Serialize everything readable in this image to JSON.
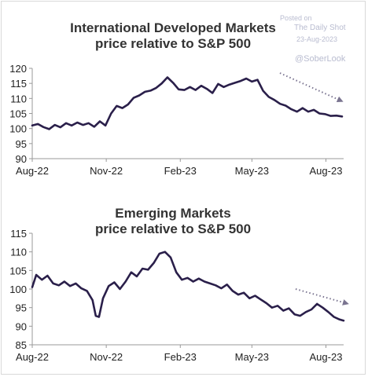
{
  "watermark": {
    "posted": "Posted on",
    "source": "The Daily Shot",
    "date": "23-Aug-2023",
    "handle": "@SoberLook"
  },
  "colors": {
    "line": "#2a1f4a",
    "arrow": "#7a7490",
    "axis": "#9a9a9a",
    "text": "#222222"
  },
  "chart_data": [
    {
      "type": "line",
      "title_line1": "International Developed Markets",
      "title_line2": "price relative to S&P 500",
      "ylim": [
        90,
        120
      ],
      "yticks": [
        90,
        95,
        100,
        105,
        110,
        115,
        120
      ],
      "xlim": [
        "2022-08-01",
        "2023-08-23"
      ],
      "xticks": [
        {
          "label": "Aug-22",
          "date": "2022-08-01"
        },
        {
          "label": "Nov-22",
          "date": "2022-11-01"
        },
        {
          "label": "Feb-23",
          "date": "2023-02-01"
        },
        {
          "label": "May-23",
          "date": "2023-05-01"
        },
        {
          "label": "Aug-23",
          "date": "2023-08-01"
        }
      ],
      "series": [
        {
          "points": [
            [
              "2022-08-01",
              101.0
            ],
            [
              "2022-08-08",
              101.5
            ],
            [
              "2022-08-15",
              100.5
            ],
            [
              "2022-08-22",
              99.8
            ],
            [
              "2022-08-29",
              101.2
            ],
            [
              "2022-09-05",
              100.4
            ],
            [
              "2022-09-12",
              101.8
            ],
            [
              "2022-09-19",
              101.0
            ],
            [
              "2022-09-26",
              102.0
            ],
            [
              "2022-10-03",
              101.2
            ],
            [
              "2022-10-10",
              101.8
            ],
            [
              "2022-10-17",
              100.6
            ],
            [
              "2022-10-24",
              102.4
            ],
            [
              "2022-10-31",
              101.0
            ],
            [
              "2022-11-07",
              105.0
            ],
            [
              "2022-11-14",
              107.5
            ],
            [
              "2022-11-21",
              106.8
            ],
            [
              "2022-11-28",
              108.0
            ],
            [
              "2022-12-05",
              110.2
            ],
            [
              "2022-12-12",
              111.0
            ],
            [
              "2022-12-19",
              112.2
            ],
            [
              "2022-12-26",
              112.6
            ],
            [
              "2023-01-02",
              113.5
            ],
            [
              "2023-01-09",
              115.0
            ],
            [
              "2023-01-16",
              117.0
            ],
            [
              "2023-01-23",
              115.2
            ],
            [
              "2023-01-30",
              113.0
            ],
            [
              "2023-02-06",
              112.8
            ],
            [
              "2023-02-13",
              113.8
            ],
            [
              "2023-02-20",
              112.8
            ],
            [
              "2023-02-27",
              114.2
            ],
            [
              "2023-03-06",
              113.2
            ],
            [
              "2023-03-13",
              111.8
            ],
            [
              "2023-03-20",
              114.8
            ],
            [
              "2023-03-27",
              113.8
            ],
            [
              "2023-04-03",
              114.6
            ],
            [
              "2023-04-10",
              115.2
            ],
            [
              "2023-04-17",
              115.8
            ],
            [
              "2023-04-24",
              116.6
            ],
            [
              "2023-05-01",
              115.6
            ],
            [
              "2023-05-08",
              116.2
            ],
            [
              "2023-05-15",
              112.5
            ],
            [
              "2023-05-22",
              110.5
            ],
            [
              "2023-05-29",
              109.5
            ],
            [
              "2023-06-05",
              108.2
            ],
            [
              "2023-06-12",
              107.6
            ],
            [
              "2023-06-19",
              106.4
            ],
            [
              "2023-06-26",
              105.6
            ],
            [
              "2023-07-03",
              106.8
            ],
            [
              "2023-07-10",
              105.6
            ],
            [
              "2023-07-17",
              106.2
            ],
            [
              "2023-07-24",
              105.0
            ],
            [
              "2023-07-31",
              104.8
            ],
            [
              "2023-08-07",
              104.2
            ],
            [
              "2023-08-14",
              104.3
            ],
            [
              "2023-08-21",
              104.0
            ]
          ]
        }
      ]
    },
    {
      "type": "line",
      "title_line1": "Emerging Markets",
      "title_line2": "price relative to S&P 500",
      "ylim": [
        85,
        115
      ],
      "yticks": [
        85,
        90,
        95,
        100,
        105,
        110,
        115
      ],
      "xlim": [
        "2022-08-01",
        "2023-08-23"
      ],
      "xticks": [
        {
          "label": "Aug-22",
          "date": "2022-08-01"
        },
        {
          "label": "Nov-22",
          "date": "2022-11-01"
        },
        {
          "label": "Feb-23",
          "date": "2023-02-01"
        },
        {
          "label": "May-23",
          "date": "2023-05-01"
        },
        {
          "label": "Aug-23",
          "date": "2023-08-01"
        }
      ],
      "series": [
        {
          "points": [
            [
              "2022-08-01",
              100.5
            ],
            [
              "2022-08-06",
              103.8
            ],
            [
              "2022-08-13",
              102.5
            ],
            [
              "2022-08-20",
              103.6
            ],
            [
              "2022-08-27",
              101.5
            ],
            [
              "2022-09-03",
              101.0
            ],
            [
              "2022-09-10",
              102.0
            ],
            [
              "2022-09-17",
              100.8
            ],
            [
              "2022-09-24",
              101.5
            ],
            [
              "2022-10-01",
              100.2
            ],
            [
              "2022-10-08",
              99.5
            ],
            [
              "2022-10-15",
              97.0
            ],
            [
              "2022-10-19",
              92.8
            ],
            [
              "2022-10-23",
              92.5
            ],
            [
              "2022-10-28",
              97.5
            ],
            [
              "2022-11-04",
              100.8
            ],
            [
              "2022-11-11",
              101.8
            ],
            [
              "2022-11-18",
              100.0
            ],
            [
              "2022-11-25",
              102.0
            ],
            [
              "2022-12-02",
              104.5
            ],
            [
              "2022-12-09",
              103.4
            ],
            [
              "2022-12-16",
              105.5
            ],
            [
              "2022-12-23",
              105.2
            ],
            [
              "2022-12-30",
              107.0
            ],
            [
              "2023-01-06",
              109.5
            ],
            [
              "2023-01-13",
              110.0
            ],
            [
              "2023-01-20",
              108.5
            ],
            [
              "2023-01-27",
              104.5
            ],
            [
              "2023-02-03",
              102.5
            ],
            [
              "2023-02-10",
              103.0
            ],
            [
              "2023-02-17",
              102.0
            ],
            [
              "2023-02-24",
              102.8
            ],
            [
              "2023-03-03",
              102.0
            ],
            [
              "2023-03-10",
              101.5
            ],
            [
              "2023-03-17",
              101.0
            ],
            [
              "2023-03-24",
              100.2
            ],
            [
              "2023-03-31",
              101.2
            ],
            [
              "2023-04-07",
              99.5
            ],
            [
              "2023-04-14",
              98.5
            ],
            [
              "2023-04-21",
              99.0
            ],
            [
              "2023-04-28",
              97.5
            ],
            [
              "2023-05-05",
              98.2
            ],
            [
              "2023-05-12",
              97.2
            ],
            [
              "2023-05-19",
              96.2
            ],
            [
              "2023-05-26",
              95.0
            ],
            [
              "2023-06-02",
              95.5
            ],
            [
              "2023-06-09",
              94.2
            ],
            [
              "2023-06-16",
              94.8
            ],
            [
              "2023-06-23",
              93.2
            ],
            [
              "2023-06-30",
              92.8
            ],
            [
              "2023-07-07",
              93.8
            ],
            [
              "2023-07-14",
              94.5
            ],
            [
              "2023-07-21",
              96.0
            ],
            [
              "2023-07-28",
              95.0
            ],
            [
              "2023-08-04",
              93.8
            ],
            [
              "2023-08-11",
              92.5
            ],
            [
              "2023-08-18",
              91.8
            ],
            [
              "2023-08-23",
              91.5
            ]
          ]
        }
      ]
    }
  ]
}
